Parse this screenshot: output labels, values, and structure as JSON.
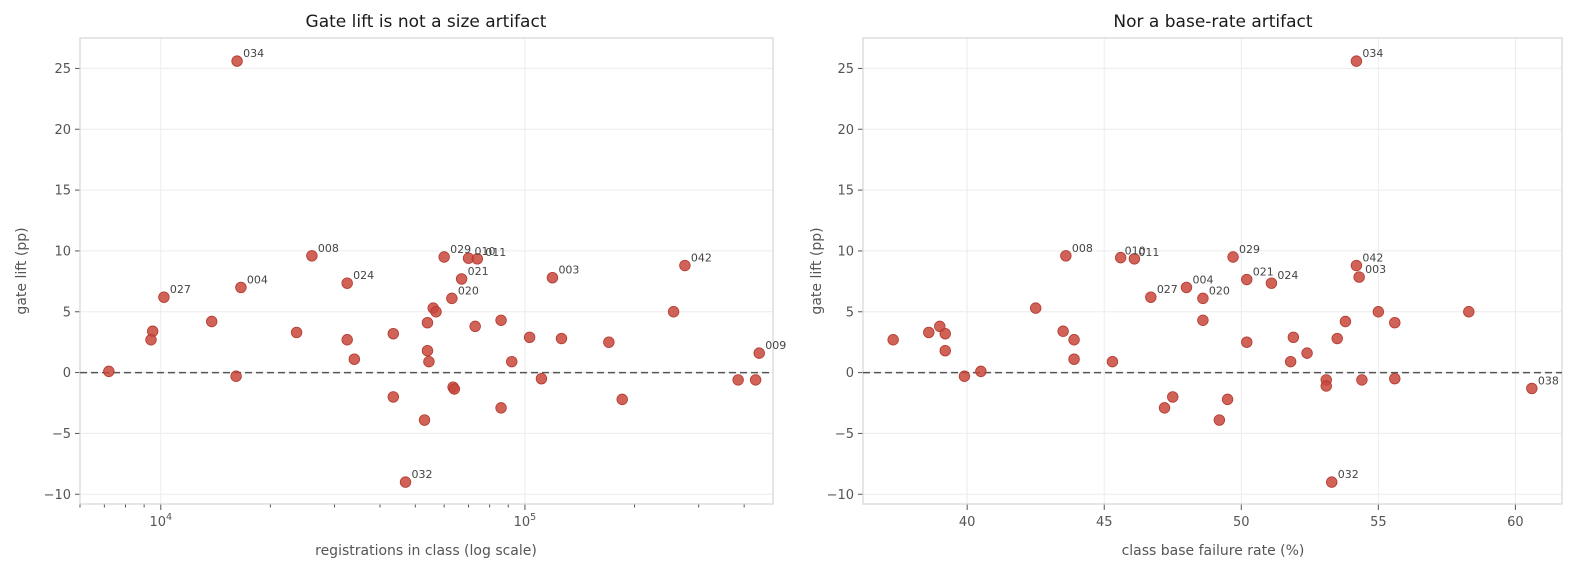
{
  "chart_data": [
    {
      "type": "scatter",
      "title": "Gate lift is not a size artifact",
      "xlabel": "registrations in class (log scale)",
      "ylabel": "gate lift (pp)",
      "xscale": "log",
      "xlim": [
        6000,
        480000
      ],
      "ylim": [
        -10.8,
        27.5
      ],
      "xticks": [
        {
          "value": 10000,
          "base": "10",
          "exp": "4"
        },
        {
          "value": 100000,
          "base": "10",
          "exp": "5"
        }
      ],
      "yticks": [
        -10,
        -5,
        0,
        5,
        10,
        15,
        20,
        25
      ],
      "ytick_labels": [
        "−10",
        "−5",
        "0",
        "5",
        "10",
        "15",
        "20",
        "25"
      ],
      "grid": true,
      "reference_line_y": 0,
      "point_color": "#c8463b",
      "points": [
        {
          "x": 16200,
          "y": 25.6,
          "label": "034"
        },
        {
          "x": 26000,
          "y": 9.6,
          "label": "008"
        },
        {
          "x": 60000,
          "y": 9.5,
          "label": "029"
        },
        {
          "x": 70000,
          "y": 9.4,
          "label": "010"
        },
        {
          "x": 74000,
          "y": 9.35,
          "label": "011"
        },
        {
          "x": 67000,
          "y": 7.7,
          "label": "021"
        },
        {
          "x": 119000,
          "y": 7.8,
          "label": "003"
        },
        {
          "x": 275000,
          "y": 8.8,
          "label": "042"
        },
        {
          "x": 32500,
          "y": 7.35,
          "label": "024"
        },
        {
          "x": 10200,
          "y": 6.2,
          "label": "027"
        },
        {
          "x": 16600,
          "y": 7.0,
          "label": "004"
        },
        {
          "x": 63000,
          "y": 6.1,
          "label": "020"
        },
        {
          "x": 440000,
          "y": 1.6,
          "label": "009"
        },
        {
          "x": 47000,
          "y": -9.0,
          "label": "032"
        },
        {
          "x": 9500,
          "y": 3.4,
          "label": ""
        },
        {
          "x": 9400,
          "y": 2.7,
          "label": ""
        },
        {
          "x": 7200,
          "y": 0.1,
          "label": ""
        },
        {
          "x": 13800,
          "y": 4.2,
          "label": ""
        },
        {
          "x": 16100,
          "y": -0.3,
          "label": ""
        },
        {
          "x": 23600,
          "y": 3.3,
          "label": ""
        },
        {
          "x": 32500,
          "y": 2.7,
          "label": ""
        },
        {
          "x": 34000,
          "y": 1.1,
          "label": ""
        },
        {
          "x": 43500,
          "y": 3.2,
          "label": ""
        },
        {
          "x": 43500,
          "y": -2.0,
          "label": ""
        },
        {
          "x": 53000,
          "y": -3.9,
          "label": ""
        },
        {
          "x": 54000,
          "y": 4.1,
          "label": ""
        },
        {
          "x": 56000,
          "y": 5.3,
          "label": ""
        },
        {
          "x": 57000,
          "y": 5.0,
          "label": ""
        },
        {
          "x": 54000,
          "y": 1.8,
          "label": ""
        },
        {
          "x": 54500,
          "y": 0.9,
          "label": ""
        },
        {
          "x": 63500,
          "y": -1.2,
          "label": ""
        },
        {
          "x": 64000,
          "y": -1.35,
          "label": ""
        },
        {
          "x": 73000,
          "y": 3.8,
          "label": ""
        },
        {
          "x": 86000,
          "y": 4.3,
          "label": ""
        },
        {
          "x": 86000,
          "y": -2.9,
          "label": ""
        },
        {
          "x": 92000,
          "y": 0.9,
          "label": ""
        },
        {
          "x": 103000,
          "y": 2.9,
          "label": ""
        },
        {
          "x": 111000,
          "y": -0.5,
          "label": ""
        },
        {
          "x": 126000,
          "y": 2.8,
          "label": ""
        },
        {
          "x": 170000,
          "y": 2.5,
          "label": ""
        },
        {
          "x": 185000,
          "y": -2.2,
          "label": ""
        },
        {
          "x": 256000,
          "y": 5.0,
          "label": ""
        },
        {
          "x": 385000,
          "y": -0.6,
          "label": ""
        },
        {
          "x": 430000,
          "y": -0.6,
          "label": ""
        }
      ]
    },
    {
      "type": "scatter",
      "title": "Nor a base-rate artifact",
      "xlabel": "class base failure rate (%)",
      "ylabel": "gate lift (pp)",
      "xscale": "linear",
      "xlim": [
        36.2,
        61.7
      ],
      "ylim": [
        -10.8,
        27.5
      ],
      "xticks": [
        {
          "value": 40,
          "label": "40"
        },
        {
          "value": 45,
          "label": "45"
        },
        {
          "value": 50,
          "label": "50"
        },
        {
          "value": 55,
          "label": "55"
        },
        {
          "value": 60,
          "label": "60"
        }
      ],
      "yticks": [
        -10,
        -5,
        0,
        5,
        10,
        15,
        20,
        25
      ],
      "ytick_labels": [
        "−10",
        "−5",
        "0",
        "5",
        "10",
        "15",
        "20",
        "25"
      ],
      "grid": true,
      "reference_line_y": 0,
      "point_color": "#c8463b",
      "points": [
        {
          "x": 54.2,
          "y": 25.6,
          "label": "034"
        },
        {
          "x": 43.6,
          "y": 9.6,
          "label": "008"
        },
        {
          "x": 45.6,
          "y": 9.45,
          "label": "010"
        },
        {
          "x": 46.1,
          "y": 9.35,
          "label": "011"
        },
        {
          "x": 49.7,
          "y": 9.5,
          "label": "029"
        },
        {
          "x": 54.2,
          "y": 8.8,
          "label": "042"
        },
        {
          "x": 54.3,
          "y": 7.85,
          "label": "003"
        },
        {
          "x": 50.2,
          "y": 7.65,
          "label": "021"
        },
        {
          "x": 51.1,
          "y": 7.35,
          "label": "024"
        },
        {
          "x": 48.0,
          "y": 7.0,
          "label": "004"
        },
        {
          "x": 46.7,
          "y": 6.2,
          "label": "027"
        },
        {
          "x": 48.6,
          "y": 6.1,
          "label": "020"
        },
        {
          "x": 60.6,
          "y": -1.3,
          "label": "038"
        },
        {
          "x": 53.3,
          "y": -9.0,
          "label": "032"
        },
        {
          "x": 37.3,
          "y": 2.7,
          "label": ""
        },
        {
          "x": 38.6,
          "y": 3.3,
          "label": ""
        },
        {
          "x": 39.0,
          "y": 3.8,
          "label": ""
        },
        {
          "x": 39.2,
          "y": 3.2,
          "label": ""
        },
        {
          "x": 39.2,
          "y": 1.8,
          "label": ""
        },
        {
          "x": 39.9,
          "y": -0.3,
          "label": ""
        },
        {
          "x": 40.5,
          "y": 0.1,
          "label": ""
        },
        {
          "x": 42.5,
          "y": 5.3,
          "label": ""
        },
        {
          "x": 43.5,
          "y": 3.4,
          "label": ""
        },
        {
          "x": 43.9,
          "y": 2.7,
          "label": ""
        },
        {
          "x": 43.9,
          "y": 1.1,
          "label": ""
        },
        {
          "x": 45.3,
          "y": 0.9,
          "label": ""
        },
        {
          "x": 47.2,
          "y": -2.9,
          "label": ""
        },
        {
          "x": 47.5,
          "y": -2.0,
          "label": ""
        },
        {
          "x": 48.6,
          "y": 4.3,
          "label": ""
        },
        {
          "x": 49.2,
          "y": -3.9,
          "label": ""
        },
        {
          "x": 49.5,
          "y": -2.2,
          "label": ""
        },
        {
          "x": 50.2,
          "y": 2.5,
          "label": ""
        },
        {
          "x": 51.8,
          "y": 0.9,
          "label": ""
        },
        {
          "x": 51.9,
          "y": 2.9,
          "label": ""
        },
        {
          "x": 52.4,
          "y": 1.6,
          "label": ""
        },
        {
          "x": 53.1,
          "y": -0.6,
          "label": ""
        },
        {
          "x": 53.1,
          "y": -1.1,
          "label": ""
        },
        {
          "x": 53.5,
          "y": 2.8,
          "label": ""
        },
        {
          "x": 53.8,
          "y": 4.2,
          "label": ""
        },
        {
          "x": 54.4,
          "y": -0.6,
          "label": ""
        },
        {
          "x": 55.0,
          "y": 5.0,
          "label": ""
        },
        {
          "x": 55.6,
          "y": 4.1,
          "label": ""
        },
        {
          "x": 55.6,
          "y": -0.5,
          "label": ""
        },
        {
          "x": 58.3,
          "y": 5.0,
          "label": ""
        }
      ]
    }
  ]
}
